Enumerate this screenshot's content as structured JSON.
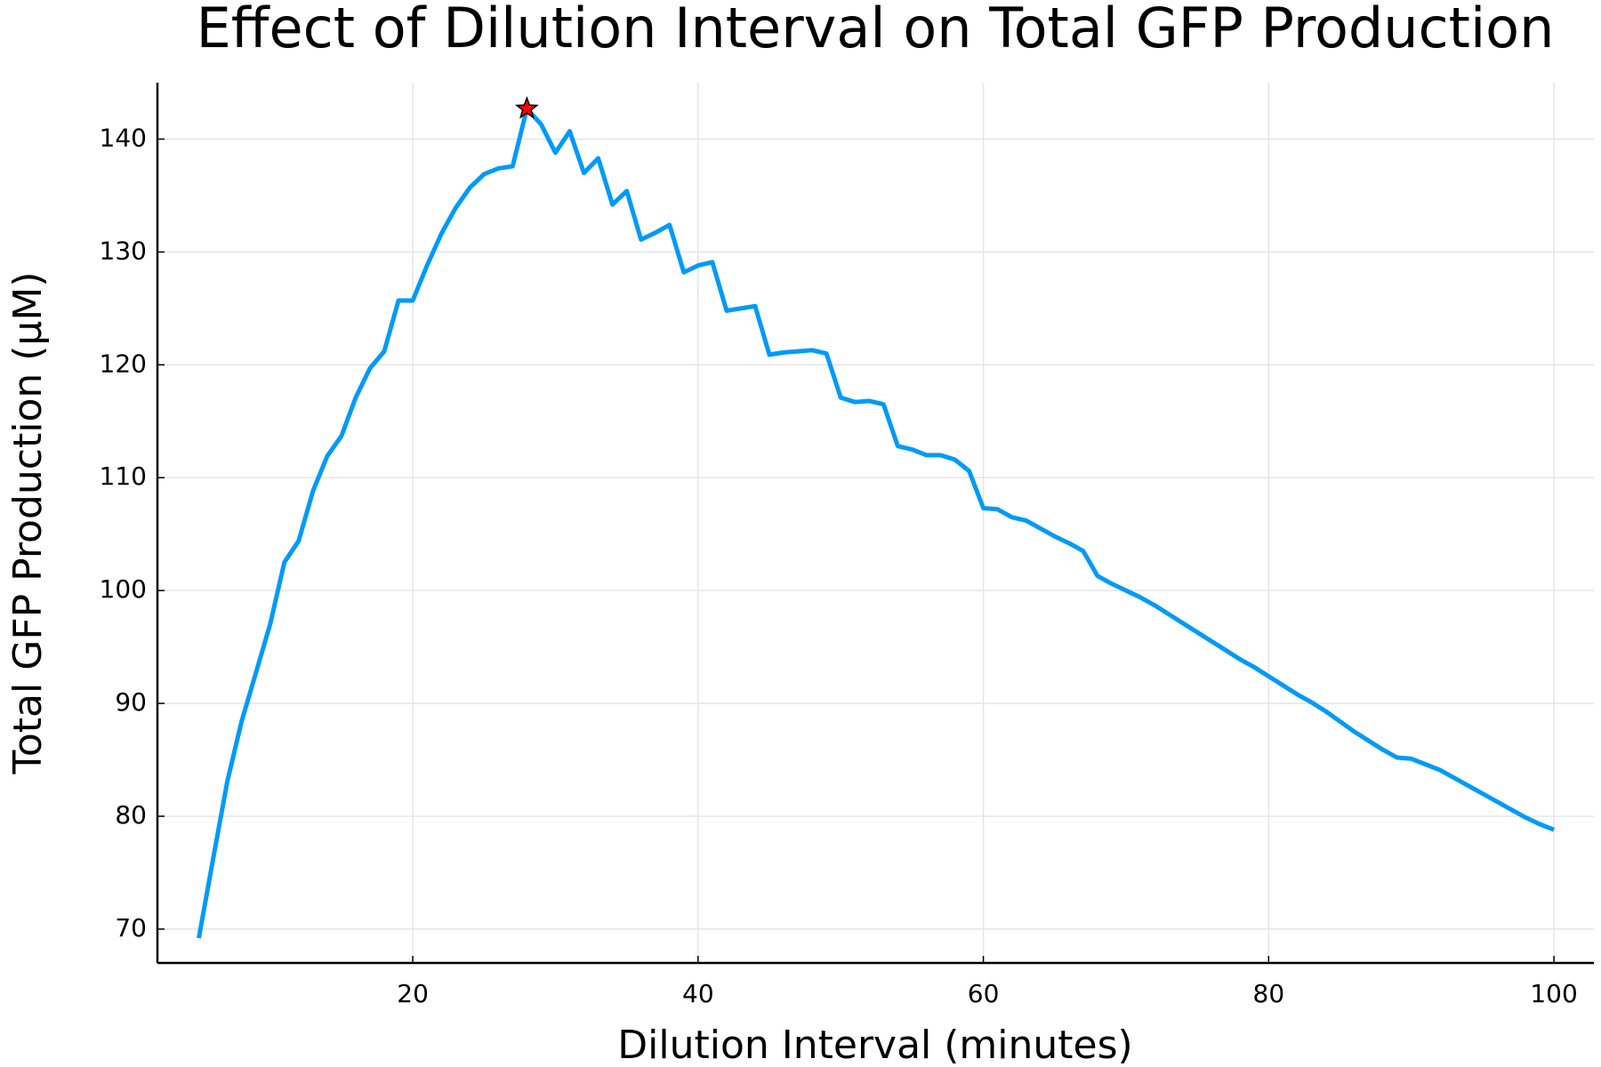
{
  "chart_data": {
    "type": "line",
    "title": "Effect of Dilution Interval on Total GFP Production",
    "xlabel": "Dilution Interval (minutes)",
    "ylabel": "Total GFP Production (μM)",
    "x": [
      5,
      6,
      7,
      8,
      9,
      10,
      11,
      12,
      13,
      14,
      15,
      16,
      17,
      18,
      19,
      20,
      21,
      22,
      23,
      24,
      25,
      26,
      27,
      28,
      29,
      30,
      31,
      32,
      33,
      34,
      35,
      36,
      37,
      38,
      39,
      40,
      41,
      42,
      43,
      44,
      45,
      46,
      47,
      48,
      49,
      50,
      51,
      52,
      53,
      54,
      55,
      56,
      57,
      58,
      59,
      60,
      61,
      62,
      63,
      64,
      65,
      66,
      67,
      68,
      69,
      70,
      71,
      72,
      73,
      74,
      75,
      76,
      77,
      78,
      79,
      80,
      81,
      82,
      83,
      84,
      85,
      86,
      87,
      88,
      89,
      90,
      91,
      92,
      93,
      94,
      95,
      96,
      97,
      98,
      99,
      100
    ],
    "series": [
      {
        "color": "#009af9",
        "values": [
          69.2,
          76.2,
          83.1,
          88.4,
          92.7,
          97.0,
          102.5,
          104.4,
          108.8,
          111.9,
          113.7,
          117.1,
          119.7,
          121.2,
          125.7,
          125.7,
          128.8,
          131.6,
          133.9,
          135.7,
          136.9,
          137.4,
          137.6,
          142.7,
          141.3,
          138.8,
          140.7,
          137.0,
          138.3,
          134.2,
          135.4,
          131.1,
          131.7,
          132.4,
          128.2,
          128.8,
          129.1,
          124.8,
          125.0,
          125.2,
          120.9,
          121.1,
          121.2,
          121.3,
          121.0,
          117.1,
          116.7,
          116.8,
          116.5,
          112.8,
          112.5,
          112.0,
          112.0,
          111.6,
          110.6,
          107.3,
          107.2,
          106.5,
          106.2,
          105.5,
          104.8,
          104.2,
          103.5,
          101.3,
          100.6,
          100.0,
          99.4,
          98.7,
          97.9,
          97.1,
          96.3,
          95.5,
          94.7,
          93.9,
          93.2,
          92.4,
          91.6,
          90.8,
          90.1,
          89.3,
          88.4,
          87.5,
          86.7,
          85.9,
          85.2,
          85.1,
          84.6,
          84.1,
          83.4,
          82.7,
          82.0,
          81.3,
          80.6,
          79.9,
          79.3,
          78.8
        ]
      }
    ],
    "highlight": {
      "x": 28,
      "y": 142.7,
      "color": "#ff0000"
    },
    "xlim": [
      2.1,
      102.8
    ],
    "xticks": [
      20,
      40,
      60,
      80,
      100
    ],
    "ylim": [
      67.0,
      145.0
    ],
    "yticks": [
      70,
      80,
      90,
      100,
      110,
      120,
      130,
      140
    ],
    "grid": true
  }
}
